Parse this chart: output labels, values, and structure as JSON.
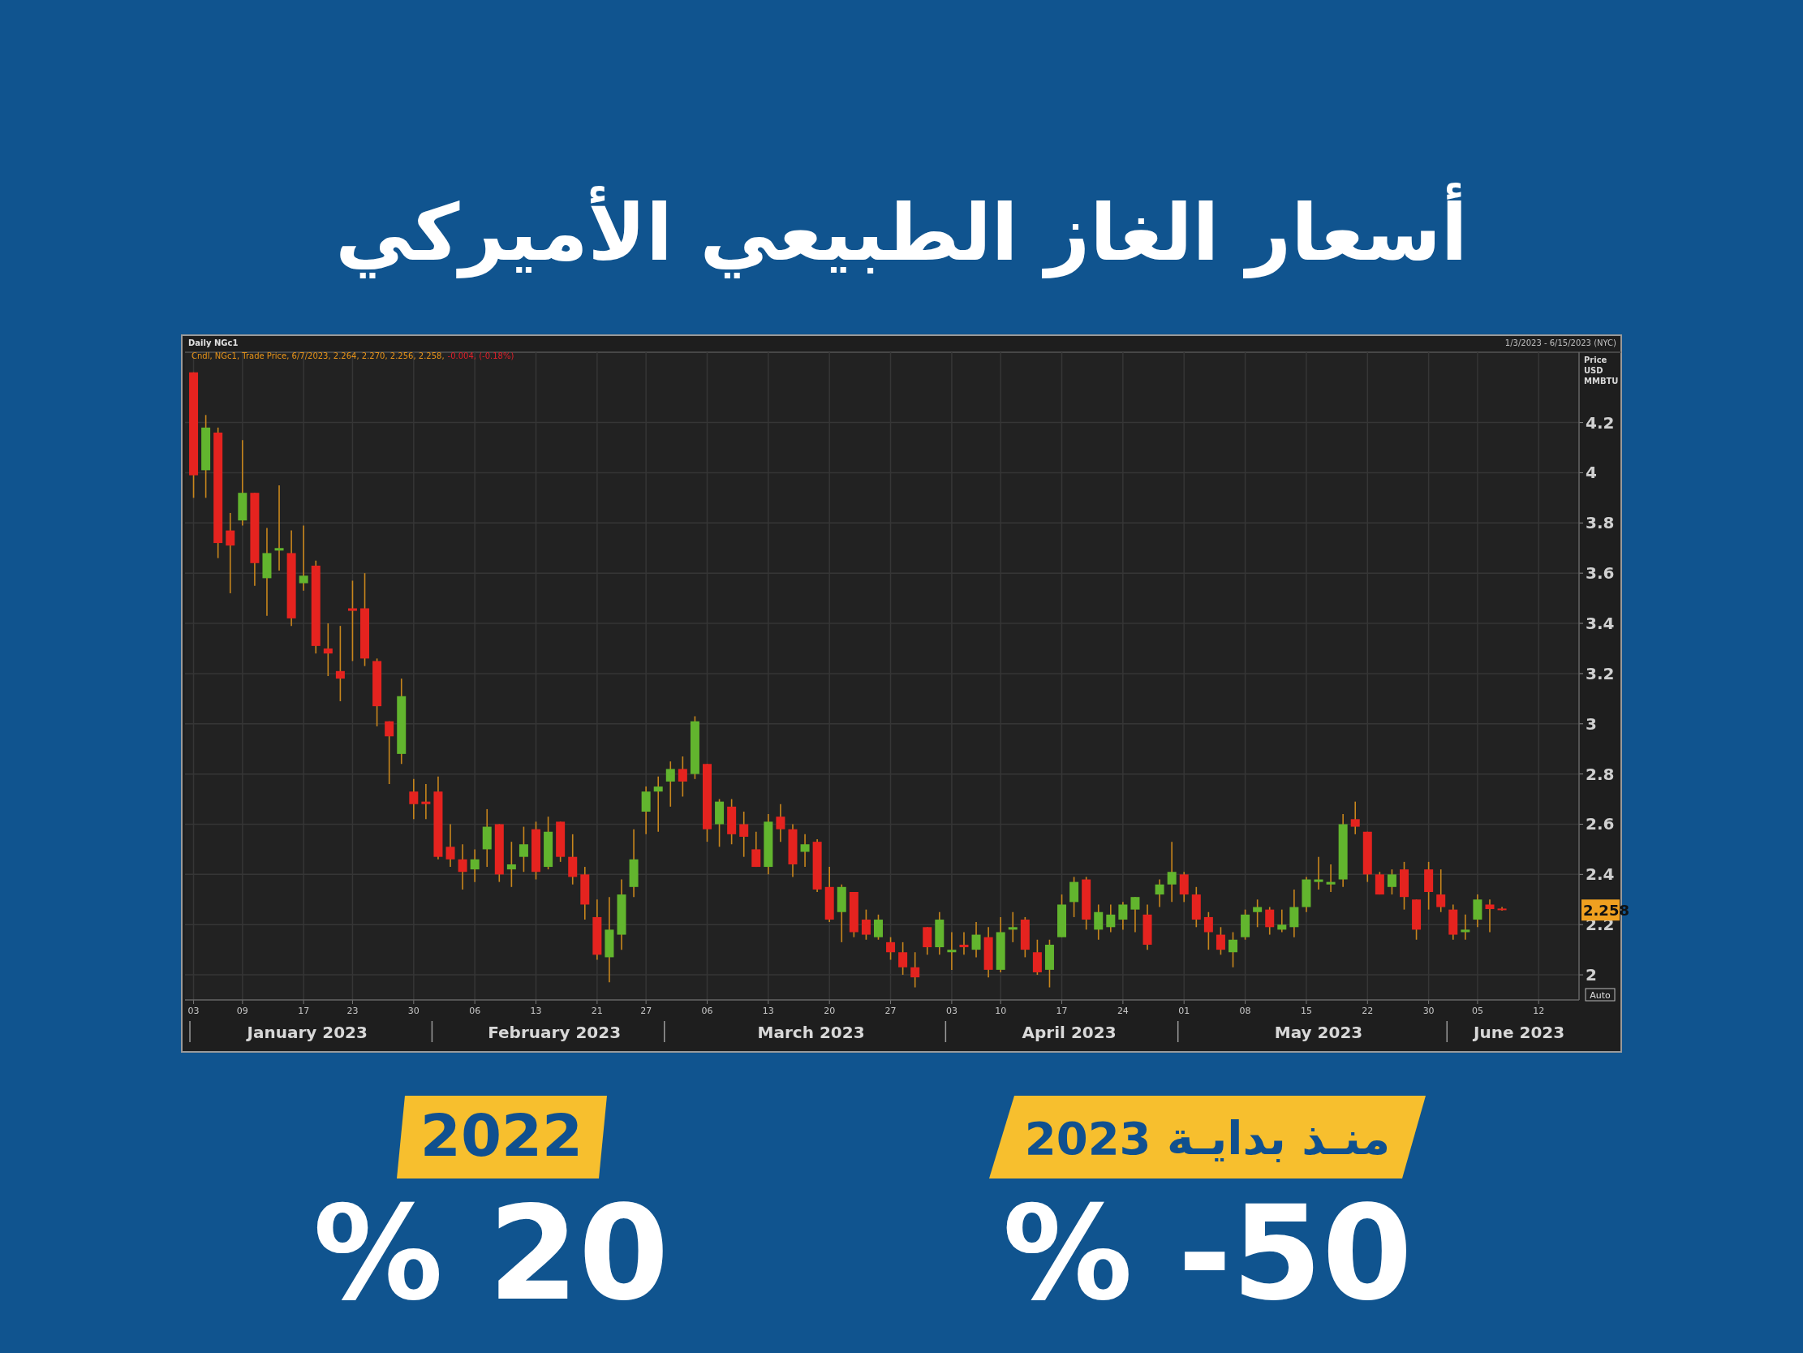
{
  "chart_data": {
    "type": "candlestick",
    "title": "أسعار الغاز الطبيعي الأميركي",
    "ylabel": "Price USD MMBTU",
    "categories": [
      "03",
      null,
      null,
      null,
      "09",
      null,
      null,
      null,
      null,
      "17",
      null,
      null,
      null,
      "23",
      null,
      null,
      null,
      null,
      "30",
      null,
      null,
      null,
      null,
      "06",
      null,
      null,
      null,
      null,
      "13",
      null,
      null,
      null,
      null,
      "21",
      null,
      null,
      null,
      "27",
      null,
      null,
      null,
      null,
      "06",
      null,
      null,
      null,
      null,
      "13",
      null,
      null,
      null,
      null,
      "20",
      null,
      null,
      null,
      null,
      "27",
      null,
      null,
      null,
      null,
      "03",
      null,
      null,
      null,
      "10",
      null,
      null,
      null,
      null,
      "17",
      null,
      null,
      null,
      null,
      "24",
      null,
      null,
      null,
      null,
      "01",
      null,
      null,
      null,
      null,
      "08",
      null,
      null,
      null,
      null,
      "15",
      null,
      null,
      null,
      null,
      "22",
      null,
      null,
      null,
      null,
      "30",
      null,
      null,
      null,
      "05",
      null,
      null,
      null,
      null,
      "12",
      null,
      null,
      null
    ],
    "ohlc": [
      [
        4.4,
        4.4,
        3.9,
        3.99
      ],
      [
        4.01,
        4.23,
        3.9,
        4.18
      ],
      [
        4.16,
        4.18,
        3.66,
        3.72
      ],
      [
        3.77,
        3.84,
        3.52,
        3.71
      ],
      [
        3.81,
        4.13,
        3.79,
        3.92
      ],
      [
        3.92,
        3.92,
        3.55,
        3.64
      ],
      [
        3.58,
        3.78,
        3.43,
        3.68
      ],
      [
        3.69,
        3.95,
        3.61,
        3.7
      ],
      [
        3.68,
        3.77,
        3.39,
        3.42
      ],
      [
        3.56,
        3.79,
        3.53,
        3.59
      ],
      [
        3.63,
        3.65,
        3.28,
        3.31
      ],
      [
        3.3,
        3.4,
        3.19,
        3.28
      ],
      [
        3.21,
        3.39,
        3.09,
        3.18
      ],
      [
        3.46,
        3.57,
        3.25,
        3.45
      ],
      [
        3.46,
        3.6,
        3.23,
        3.26
      ],
      [
        3.25,
        3.26,
        2.99,
        3.07
      ],
      [
        3.01,
        3.01,
        2.76,
        2.95
      ],
      [
        2.88,
        3.18,
        2.84,
        3.11
      ],
      [
        2.73,
        2.78,
        2.62,
        2.68
      ],
      [
        2.69,
        2.76,
        2.62,
        2.68
      ],
      [
        2.73,
        2.79,
        2.46,
        2.47
      ],
      [
        2.51,
        2.6,
        2.43,
        2.46
      ],
      [
        2.46,
        2.52,
        2.34,
        2.41
      ],
      [
        2.42,
        2.5,
        2.37,
        2.46
      ],
      [
        2.5,
        2.66,
        2.43,
        2.59
      ],
      [
        2.6,
        2.6,
        2.37,
        2.4
      ],
      [
        2.42,
        2.53,
        2.35,
        2.44
      ],
      [
        2.47,
        2.59,
        2.41,
        2.52
      ],
      [
        2.58,
        2.61,
        2.38,
        2.41
      ],
      [
        2.43,
        2.63,
        2.42,
        2.57
      ],
      [
        2.61,
        2.61,
        2.45,
        2.47
      ],
      [
        2.47,
        2.56,
        2.36,
        2.39
      ],
      [
        2.4,
        2.43,
        2.22,
        2.28
      ],
      [
        2.23,
        2.3,
        2.06,
        2.08
      ],
      [
        2.07,
        2.31,
        1.97,
        2.18
      ],
      [
        2.16,
        2.38,
        2.1,
        2.32
      ],
      [
        2.35,
        2.58,
        2.31,
        2.46
      ],
      [
        2.65,
        2.75,
        2.56,
        2.73
      ],
      [
        2.73,
        2.79,
        2.57,
        2.75
      ],
      [
        2.77,
        2.85,
        2.67,
        2.82
      ],
      [
        2.82,
        2.87,
        2.71,
        2.77
      ],
      [
        2.8,
        3.03,
        2.78,
        3.01
      ],
      [
        2.84,
        2.84,
        2.53,
        2.58
      ],
      [
        2.6,
        2.7,
        2.51,
        2.69
      ],
      [
        2.67,
        2.7,
        2.52,
        2.56
      ],
      [
        2.6,
        2.65,
        2.47,
        2.55
      ],
      [
        2.5,
        2.57,
        2.43,
        2.43
      ],
      [
        2.43,
        2.64,
        2.4,
        2.61
      ],
      [
        2.63,
        2.68,
        2.53,
        2.58
      ],
      [
        2.58,
        2.6,
        2.39,
        2.44
      ],
      [
        2.49,
        2.56,
        2.43,
        2.52
      ],
      [
        2.53,
        2.54,
        2.33,
        2.34
      ],
      [
        2.35,
        2.43,
        2.21,
        2.22
      ],
      [
        2.25,
        2.36,
        2.13,
        2.35
      ],
      [
        2.33,
        2.33,
        2.15,
        2.17
      ],
      [
        2.22,
        2.26,
        2.14,
        2.16
      ],
      [
        2.15,
        2.24,
        2.14,
        2.22
      ],
      [
        2.13,
        2.15,
        2.06,
        2.09
      ],
      [
        2.09,
        2.13,
        2.0,
        2.03
      ],
      [
        2.03,
        2.09,
        1.95,
        1.99
      ],
      [
        2.19,
        2.19,
        2.08,
        2.11
      ],
      [
        2.11,
        2.25,
        2.08,
        2.22
      ],
      [
        2.09,
        2.17,
        2.02,
        2.1
      ],
      [
        2.12,
        2.17,
        2.08,
        2.11
      ],
      [
        2.1,
        2.21,
        2.07,
        2.16
      ],
      [
        2.15,
        2.19,
        1.99,
        2.02
      ],
      [
        2.02,
        2.23,
        2.01,
        2.17
      ],
      [
        2.18,
        2.25,
        2.13,
        2.19
      ],
      [
        2.22,
        2.23,
        2.07,
        2.1
      ],
      [
        2.09,
        2.14,
        2.0,
        2.01
      ],
      [
        2.02,
        2.14,
        1.95,
        2.12
      ],
      [
        2.15,
        2.32,
        2.15,
        2.28
      ],
      [
        2.29,
        2.39,
        2.23,
        2.37
      ],
      [
        2.38,
        2.39,
        2.18,
        2.22
      ],
      [
        2.18,
        2.28,
        2.14,
        2.25
      ],
      [
        2.19,
        2.28,
        2.17,
        2.24
      ],
      [
        2.22,
        2.29,
        2.18,
        2.28
      ],
      [
        2.26,
        2.31,
        2.17,
        2.31
      ],
      [
        2.24,
        2.28,
        2.1,
        2.12
      ],
      [
        2.32,
        2.38,
        2.27,
        2.36
      ],
      [
        2.36,
        2.53,
        2.29,
        2.41
      ],
      [
        2.4,
        2.41,
        2.29,
        2.32
      ],
      [
        2.32,
        2.35,
        2.19,
        2.22
      ],
      [
        2.23,
        2.25,
        2.1,
        2.17
      ],
      [
        2.16,
        2.19,
        2.08,
        2.1
      ],
      [
        2.09,
        2.17,
        2.03,
        2.14
      ],
      [
        2.15,
        2.26,
        2.14,
        2.24
      ],
      [
        2.25,
        2.3,
        2.19,
        2.27
      ],
      [
        2.26,
        2.27,
        2.16,
        2.19
      ],
      [
        2.18,
        2.26,
        2.17,
        2.2
      ],
      [
        2.19,
        2.34,
        2.15,
        2.27
      ],
      [
        2.27,
        2.39,
        2.25,
        2.38
      ],
      [
        2.37,
        2.47,
        2.34,
        2.38
      ],
      [
        2.36,
        2.44,
        2.33,
        2.37
      ],
      [
        2.38,
        2.64,
        2.35,
        2.6
      ],
      [
        2.62,
        2.69,
        2.56,
        2.59
      ],
      [
        2.57,
        2.57,
        2.37,
        2.4
      ],
      [
        2.4,
        2.41,
        2.32,
        2.32
      ],
      [
        2.35,
        2.42,
        2.32,
        2.4
      ],
      [
        2.42,
        2.45,
        2.26,
        2.31
      ],
      [
        2.3,
        2.3,
        2.14,
        2.18
      ],
      [
        2.42,
        2.45,
        2.26,
        2.33
      ],
      [
        2.32,
        2.42,
        2.25,
        2.27
      ],
      [
        2.26,
        2.28,
        2.14,
        2.16
      ],
      [
        2.17,
        2.24,
        2.14,
        2.18
      ],
      [
        2.22,
        2.32,
        2.19,
        2.3
      ],
      [
        2.28,
        2.3,
        2.17,
        2.262
      ],
      [
        2.264,
        2.27,
        2.256,
        2.258
      ],
      null,
      null,
      null,
      null,
      null,
      null
    ],
    "ylim": [
      1.9,
      4.48
    ],
    "yticks": [
      2,
      2.2,
      2.4,
      2.6,
      2.8,
      3,
      3.2,
      3.4,
      3.6,
      3.8,
      4,
      4.2
    ],
    "grid": true,
    "annotations": [
      "Daily NGc1",
      "1/3/2023 - 6/15/2023 (NYC)",
      "Cndl, NGc1, Trade Price, 6/7/2023, 2.264, 2.270, 2.256, 2.258,",
      "-0.004, (-0.18%)",
      "Auto",
      "2022",
      "% 20",
      "منـذ بدايـة 2023",
      "% -50",
      "2.258",
      "January 2023",
      "February 2023",
      "March 2023",
      "April 2023",
      "May 2023",
      "June 2023"
    ]
  }
}
